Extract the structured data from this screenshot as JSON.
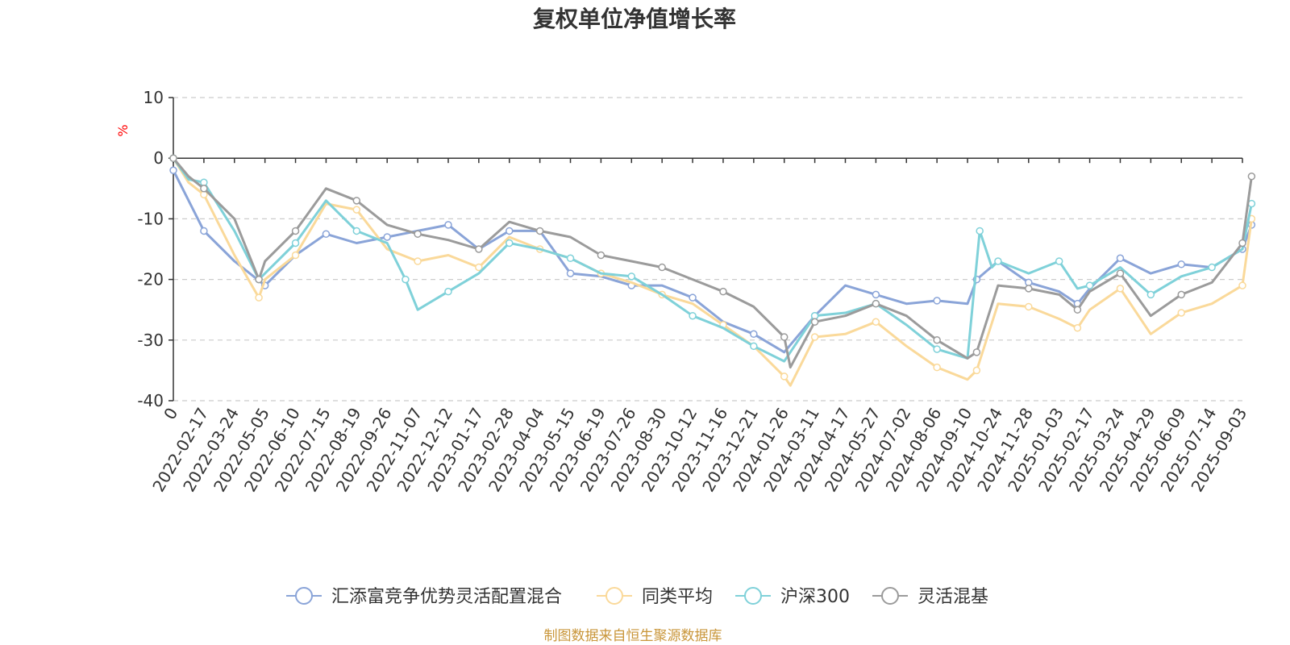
{
  "chart_data": {
    "type": "line",
    "title": "复权单位净值增长率",
    "ylabel": "%",
    "ylim": [
      -40,
      10
    ],
    "yticks": [
      10,
      0,
      -10,
      -20,
      -30,
      -40
    ],
    "grid": true,
    "legend_position": "bottom",
    "x_tick_labels": [
      "0",
      "2022-02-17",
      "2022-03-24",
      "2022-05-05",
      "2022-06-10",
      "2022-07-15",
      "2022-08-19",
      "2022-09-26",
      "2022-11-07",
      "2022-12-12",
      "2023-01-17",
      "2023-02-28",
      "2023-04-04",
      "2023-05-15",
      "2023-06-19",
      "2023-07-26",
      "2023-08-30",
      "2023-10-12",
      "2023-11-16",
      "2023-12-21",
      "2024-01-26",
      "2024-03-11",
      "2024-04-17",
      "2024-05-27",
      "2024-07-02",
      "2024-08-06",
      "2024-09-10",
      "2024-10-24",
      "2024-11-28",
      "2025-01-03",
      "2025-02-17",
      "2025-03-24",
      "2025-04-29",
      "2025-06-09",
      "2025-07-14",
      "2025-09-03"
    ],
    "series": [
      {
        "name": "汇添富竞争优势灵活配置混合",
        "color": "#8aa4d8",
        "x": [
          0,
          0.3,
          1,
          2,
          3,
          4,
          5,
          6,
          7,
          8,
          9,
          10,
          11,
          12,
          13,
          14,
          15,
          16,
          17,
          18,
          19,
          20,
          21,
          22,
          23,
          24,
          25,
          26,
          26.3,
          27,
          28,
          29,
          29.6,
          30,
          31,
          32,
          33,
          34,
          35,
          35.3
        ],
        "values": [
          -2,
          -5,
          -12,
          -17,
          -21,
          -16,
          -12.5,
          -14,
          -13,
          -12,
          -11,
          -15,
          -12,
          -12,
          -19,
          -19.5,
          -21,
          -21,
          -23,
          -27,
          -29,
          -32,
          -26,
          -21,
          -22.5,
          -24,
          -23.5,
          -24,
          -20,
          -17,
          -20.5,
          -22,
          -24,
          -21.5,
          -16.5,
          -19,
          -17.5,
          -18,
          -15,
          -11
        ]
      },
      {
        "name": "同类平均",
        "color": "#fad99a",
        "x": [
          0,
          0.5,
          1,
          2,
          2.8,
          3,
          4,
          5,
          6,
          7,
          8,
          9,
          10,
          11,
          12,
          13,
          14,
          15,
          16,
          17,
          18,
          19,
          20,
          20.2,
          21,
          22,
          23,
          24,
          25,
          26,
          26.3,
          27,
          28,
          29,
          29.6,
          30,
          31,
          32,
          33,
          34,
          35,
          35.3
        ],
        "values": [
          0,
          -4,
          -6,
          -16,
          -23,
          -20,
          -16,
          -7.5,
          -8.5,
          -15,
          -17,
          -16,
          -18,
          -13,
          -15,
          -16.5,
          -19,
          -20.5,
          -22.5,
          -24,
          -27.5,
          -31,
          -36,
          -37.5,
          -29.5,
          -29,
          -27,
          -31,
          -34.5,
          -36.5,
          -35,
          -24,
          -24.5,
          -26.5,
          -28,
          -25,
          -21.5,
          -29,
          -25.5,
          -24,
          -21,
          -10
        ]
      },
      {
        "name": "沪深300",
        "color": "#7fd1d9",
        "x": [
          0,
          0.5,
          1,
          2,
          2.8,
          3,
          4,
          5,
          6,
          7,
          7.6,
          8,
          9,
          10,
          11,
          12,
          13,
          14,
          15,
          16,
          17,
          18,
          19,
          20,
          21,
          22,
          23,
          24,
          25,
          26,
          26.4,
          26.8,
          27,
          28,
          29,
          29.6,
          30,
          31,
          32,
          33,
          34,
          35,
          35.3
        ],
        "values": [
          0,
          -3.5,
          -4,
          -12,
          -20,
          -19,
          -14,
          -7,
          -12,
          -14,
          -20,
          -25,
          -22,
          -19,
          -14,
          -15,
          -16.5,
          -19,
          -19.5,
          -22.5,
          -26,
          -28,
          -31,
          -33.5,
          -26,
          -25.5,
          -24,
          -27.5,
          -31.5,
          -33,
          -12,
          -18,
          -17,
          -19,
          -17,
          -21.5,
          -21,
          -18,
          -22.5,
          -19.5,
          -18,
          -15,
          -7.5
        ]
      },
      {
        "name": "灵活混基",
        "color": "#9b9b9b",
        "x": [
          0,
          0.5,
          1,
          2,
          2.8,
          3,
          4,
          5,
          6,
          7,
          8,
          9,
          10,
          11,
          12,
          13,
          14,
          15,
          16,
          17,
          18,
          19,
          20,
          20.2,
          21,
          22,
          23,
          24,
          25,
          26,
          26.3,
          27,
          28,
          29,
          29.6,
          30,
          31,
          32,
          33,
          34,
          35,
          35.3
        ],
        "values": [
          0,
          -3,
          -5,
          -10,
          -20,
          -17,
          -12,
          -5,
          -7,
          -11,
          -12.5,
          -13.5,
          -15,
          -10.5,
          -12,
          -13,
          -16,
          -17,
          -18,
          -20,
          -22,
          -24.5,
          -29.5,
          -34.5,
          -27,
          -26,
          -24,
          -26,
          -30,
          -33,
          -32,
          -21,
          -21.5,
          -22.5,
          -25,
          -22,
          -19,
          -26,
          -22.5,
          -20.5,
          -14,
          -3
        ]
      }
    ]
  },
  "legend": {
    "items": [
      {
        "label": "汇添富竞争优势灵活配置混合",
        "color": "#8aa4d8"
      },
      {
        "label": "同类平均",
        "color": "#fad99a"
      },
      {
        "label": "沪深300",
        "color": "#7fd1d9"
      },
      {
        "label": "灵活混基",
        "color": "#9b9b9b"
      }
    ]
  },
  "source": "制图数据来自恒生聚源数据库"
}
